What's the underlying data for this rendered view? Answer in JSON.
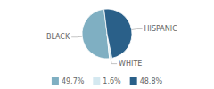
{
  "chart_data": {
    "type": "pie",
    "categories": [
      "BLACK",
      "WHITE",
      "HISPANIC"
    ],
    "values": [
      49.7,
      1.6,
      48.8
    ],
    "value_labels": [
      "49.7%",
      "1.6%",
      "48.8%"
    ],
    "colors": [
      "#7fafc2",
      "#d4e8f0",
      "#2a6089"
    ]
  }
}
